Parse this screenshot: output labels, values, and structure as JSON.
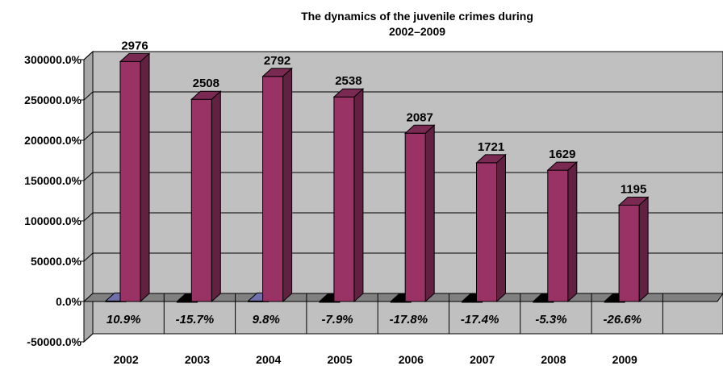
{
  "chart_data": {
    "type": "bar",
    "title_lines": [
      "The dynamics of the juvenile crimes during",
      "2002–2009"
    ],
    "categories": [
      "2002",
      "2003",
      "2004",
      "2005",
      "2006",
      "2007",
      "2008",
      "2009"
    ],
    "series": [
      {
        "values": [
          10.9,
          -15.7,
          9.8,
          -7.9,
          -17.8,
          -17.4,
          -5.3,
          -26.6
        ],
        "labels": [
          "10.9%",
          "-15.7%",
          "9.8%",
          "-7.9%",
          "-17.8%",
          "-17.4%",
          "-5.3%",
          "-26.6%"
        ],
        "color": "#8c8cd6"
      },
      {
        "values": [
          2976,
          2508,
          2792,
          2538,
          2087,
          1721,
          1629,
          1195
        ],
        "labels": [
          "2976",
          "2508",
          "2792",
          "2538",
          "2087",
          "1721",
          "1629",
          "1195"
        ],
        "color": "#993366"
      }
    ],
    "yticks": [
      "300000.0%",
      "250000.0%",
      "200000.0%",
      "150000.0%",
      "100000.0%",
      "50000.0%",
      "0.0%",
      "-50000.0%"
    ],
    "ylim": [
      -500,
      3000
    ],
    "grid": true,
    "legend": "none",
    "colors": {
      "plot_wall": "#c0c0c0",
      "floor": "#808080",
      "negative_bar": "#000000"
    }
  }
}
